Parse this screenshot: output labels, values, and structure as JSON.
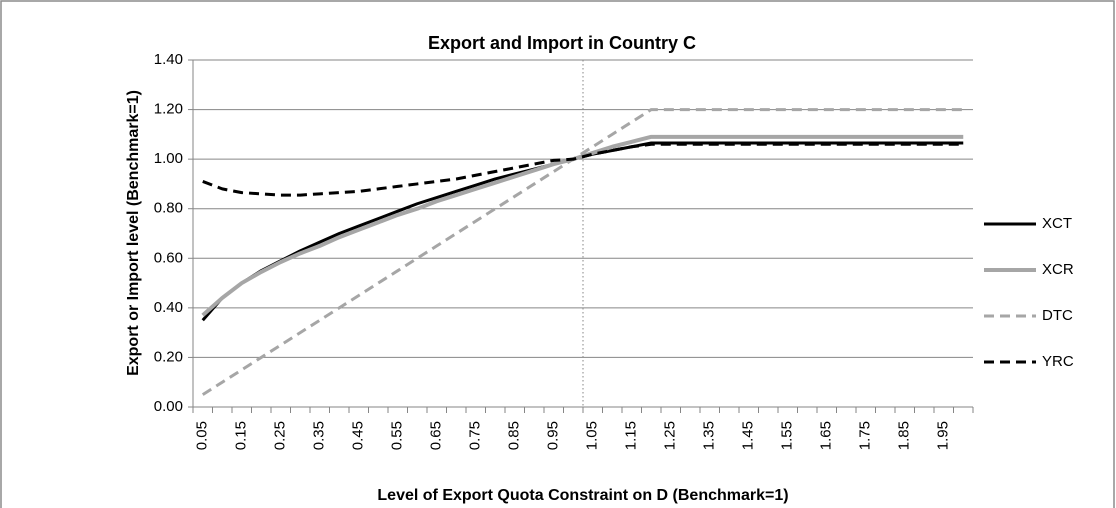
{
  "chart_data": {
    "type": "line",
    "title": "Export and Import in Country C",
    "y_label": "Export or Import level (Benchmark=1)",
    "x_label": "Level of Export Quota Constraint on D (Benchmark=1)",
    "categories": [
      "0.05",
      null,
      "0.15",
      null,
      "0.25",
      null,
      "0.35",
      null,
      "0.45",
      null,
      "0.55",
      null,
      "0.65",
      null,
      "0.75",
      null,
      "0.85",
      null,
      "0.95",
      null,
      "1.05",
      null,
      "1.15",
      null,
      "1.25",
      null,
      "1.35",
      null,
      "1.45",
      null,
      "1.55",
      null,
      "1.65",
      null,
      "1.75",
      null,
      "1.85",
      null,
      "1.95",
      null
    ],
    "series": [
      {
        "name": "XCT",
        "color": "#000000",
        "dashed": false,
        "width": 3,
        "values": [
          0.35,
          0.44,
          0.5,
          0.55,
          0.59,
          0.63,
          0.665,
          0.7,
          0.73,
          0.76,
          0.79,
          0.82,
          0.845,
          0.87,
          0.895,
          0.92,
          0.94,
          0.96,
          0.98,
          1.0,
          1.02,
          1.035,
          1.05,
          1.065,
          1.065,
          1.065,
          1.065,
          1.065,
          1.065,
          1.065,
          1.065,
          1.065,
          1.065,
          1.065,
          1.065,
          1.065,
          1.065,
          1.065,
          1.065,
          1.065
        ]
      },
      {
        "name": "XCR",
        "color": "#a6a6a6",
        "dashed": false,
        "width": 4,
        "values": [
          0.37,
          0.44,
          0.5,
          0.545,
          0.585,
          0.62,
          0.65,
          0.685,
          0.715,
          0.745,
          0.775,
          0.8,
          0.83,
          0.855,
          0.88,
          0.905,
          0.93,
          0.955,
          0.98,
          1.0,
          1.025,
          1.05,
          1.07,
          1.09,
          1.09,
          1.09,
          1.09,
          1.09,
          1.09,
          1.09,
          1.09,
          1.09,
          1.09,
          1.09,
          1.09,
          1.09,
          1.09,
          1.09,
          1.09,
          1.09
        ]
      },
      {
        "name": "DTC",
        "color": "#a6a6a6",
        "dashed": true,
        "width": 3,
        "values": [
          0.05,
          0.1,
          0.15,
          0.2,
          0.25,
          0.3,
          0.35,
          0.4,
          0.45,
          0.5,
          0.55,
          0.6,
          0.65,
          0.7,
          0.75,
          0.8,
          0.85,
          0.9,
          0.95,
          1.0,
          1.05,
          1.1,
          1.15,
          1.2,
          1.2,
          1.2,
          1.2,
          1.2,
          1.2,
          1.2,
          1.2,
          1.2,
          1.2,
          1.2,
          1.2,
          1.2,
          1.2,
          1.2,
          1.2,
          1.2
        ]
      },
      {
        "name": "YRC",
        "color": "#000000",
        "dashed": true,
        "width": 3,
        "values": [
          0.91,
          0.88,
          0.865,
          0.86,
          0.855,
          0.855,
          0.86,
          0.865,
          0.87,
          0.88,
          0.89,
          0.9,
          0.91,
          0.92,
          0.935,
          0.95,
          0.965,
          0.98,
          0.995,
          1.0,
          1.02,
          1.035,
          1.05,
          1.06,
          1.06,
          1.06,
          1.06,
          1.06,
          1.06,
          1.06,
          1.06,
          1.06,
          1.06,
          1.06,
          1.06,
          1.06,
          1.06,
          1.06,
          1.06,
          1.06
        ]
      }
    ],
    "ylim": [
      0,
      1.4
    ],
    "yticks": [
      {
        "value": 0,
        "label": "0.00"
      },
      {
        "value": 0.2,
        "label": "0.20"
      },
      {
        "value": 0.4,
        "label": "0.40"
      },
      {
        "value": 0.6,
        "label": "0.60"
      },
      {
        "value": 0.8,
        "label": "0.80"
      },
      {
        "value": 1.0,
        "label": "1.00"
      },
      {
        "value": 1.2,
        "label": "1.20"
      },
      {
        "value": 1.4,
        "label": "1.40"
      }
    ],
    "grid": true,
    "legend": "right"
  }
}
